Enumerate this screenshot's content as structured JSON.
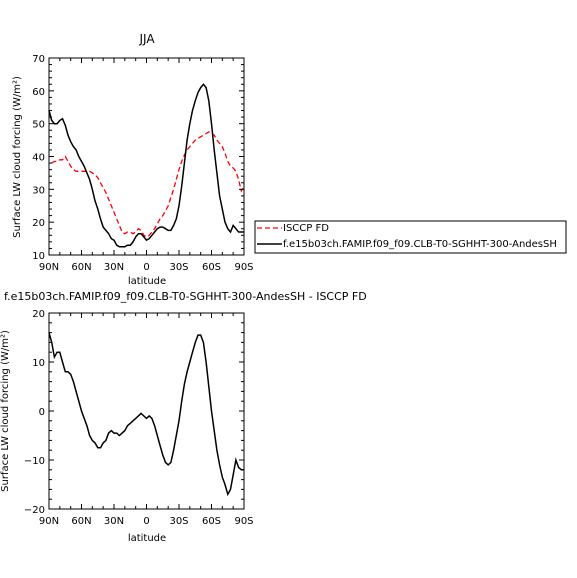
{
  "chart_data": [
    {
      "type": "line",
      "title": "JJA",
      "xlabel": "latitude",
      "ylabel": "Surface LW cloud forcing (W/m²)",
      "xlim": [
        -90,
        90
      ],
      "ylim": [
        10,
        70
      ],
      "x_tick_values": [
        -90,
        -60,
        -30,
        0,
        30,
        60,
        90
      ],
      "x_tick_labels": [
        "90N",
        "60N",
        "30N",
        "0",
        "30S",
        "60S",
        "90S"
      ],
      "y_tick_values": [
        10,
        20,
        30,
        40,
        50,
        60,
        70
      ],
      "y_tick_labels": [
        "10",
        "20",
        "30",
        "40",
        "50",
        "60",
        "70"
      ],
      "grid": false,
      "legend_position": "right",
      "series": [
        {
          "name": "ISCCP FD",
          "color": "#ff0000",
          "dash": "dashed",
          "x": [
            -87.5,
            -85,
            -82.5,
            -80,
            -77.5,
            -75,
            -72.5,
            -70,
            -67.5,
            -65,
            -62.5,
            -60,
            -57.5,
            -55,
            -52.5,
            -50,
            -47.5,
            -45,
            -42.5,
            -40,
            -37.5,
            -35,
            -32.5,
            -30,
            -27.5,
            -25,
            -22.5,
            -20,
            -17.5,
            -15,
            -12.5,
            -10,
            -7.5,
            -5,
            -2.5,
            0,
            2.5,
            5,
            7.5,
            10,
            12.5,
            15,
            17.5,
            20,
            22.5,
            25,
            27.5,
            30,
            32.5,
            35,
            37.5,
            40,
            42.5,
            45,
            47.5,
            50,
            52.5,
            55,
            57.5,
            60,
            62.5,
            65,
            67.5,
            70,
            72.5,
            75,
            77.5,
            80,
            82.5,
            85,
            87.5,
            90
          ],
          "y": [
            38,
            38.5,
            38.5,
            39,
            39,
            40,
            38.5,
            37,
            36,
            35.5,
            35.5,
            35.5,
            35.5,
            35.5,
            35.5,
            35,
            34.5,
            33.5,
            32,
            30.5,
            29,
            27,
            25,
            23,
            21,
            19,
            17,
            16.5,
            17,
            17,
            16.5,
            17,
            18,
            17.5,
            16,
            15.5,
            16,
            17,
            18,
            19.5,
            21,
            22,
            23.5,
            25,
            27.5,
            30,
            33,
            36,
            38.5,
            40.5,
            42,
            43,
            44,
            45,
            45.5,
            46,
            46.5,
            47,
            47.5,
            47,
            46.5,
            45,
            44,
            43,
            41,
            38.5,
            37,
            36.5,
            35.5,
            33,
            29.5,
            31
          ]
        },
        {
          "name": "f.e15b03ch.FAMIP.f09_f09.CLB-T0-SGHHT-300-AndesSH",
          "color": "#000000",
          "dash": "solid",
          "x": [
            -90,
            -87.5,
            -85,
            -82.5,
            -80,
            -77.5,
            -75,
            -72.5,
            -70,
            -67.5,
            -65,
            -62.5,
            -60,
            -57.5,
            -55,
            -52.5,
            -50,
            -47.5,
            -45,
            -42.5,
            -40,
            -37.5,
            -35,
            -32.5,
            -30,
            -27.5,
            -25,
            -22.5,
            -20,
            -17.5,
            -15,
            -12.5,
            -10,
            -7.5,
            -5,
            -2.5,
            0,
            2.5,
            5,
            7.5,
            10,
            12.5,
            15,
            17.5,
            20,
            22.5,
            25,
            27.5,
            30,
            32.5,
            35,
            37.5,
            40,
            42.5,
            45,
            47.5,
            50,
            52.5,
            55,
            57.5,
            60,
            62.5,
            65,
            67.5,
            70,
            72.5,
            75,
            77.5,
            80,
            82.5,
            85,
            87.5,
            90
          ],
          "y": [
            54,
            51,
            50,
            50,
            51,
            51.5,
            49.5,
            46.5,
            44.5,
            43,
            42,
            40,
            38.5,
            37,
            35,
            33,
            30,
            26.5,
            24,
            21,
            18.5,
            17.5,
            16.5,
            15,
            14.5,
            13,
            12.5,
            12.5,
            12.5,
            13,
            13,
            14,
            15.5,
            16.5,
            16.5,
            15.5,
            14.5,
            15,
            16,
            17,
            18,
            18.5,
            18.5,
            18,
            17.5,
            17.5,
            19,
            21,
            25,
            31,
            38,
            45,
            50,
            54,
            57,
            59.5,
            61,
            62,
            61,
            57,
            50,
            42,
            35,
            28,
            24,
            20,
            18,
            17,
            19,
            18,
            17,
            17,
            17
          ]
        }
      ]
    },
    {
      "type": "line",
      "title": "f.e15b03ch.FAMIP.f09_f09.CLB-T0-SGHHT-300-AndesSH - ISCCP FD",
      "xlabel": "latitude",
      "ylabel": "Surface LW cloud forcing (W/m²)",
      "xlim": [
        -90,
        90
      ],
      "ylim": [
        -20,
        20
      ],
      "x_tick_values": [
        -90,
        -60,
        -30,
        0,
        30,
        60,
        90
      ],
      "x_tick_labels": [
        "90N",
        "60N",
        "30N",
        "0",
        "30S",
        "60S",
        "90S"
      ],
      "y_tick_values": [
        -20,
        -10,
        0,
        10,
        20
      ],
      "y_tick_labels": [
        "−20",
        "−10",
        "0",
        "10",
        "20"
      ],
      "grid": false,
      "series": [
        {
          "color": "#000000",
          "dash": "solid",
          "x": [
            -90,
            -87.5,
            -85,
            -82.5,
            -80,
            -77.5,
            -75,
            -72.5,
            -70,
            -67.5,
            -65,
            -62.5,
            -60,
            -57.5,
            -55,
            -52.5,
            -50,
            -47.5,
            -45,
            -42.5,
            -40,
            -37.5,
            -35,
            -32.5,
            -30,
            -27.5,
            -25,
            -22.5,
            -20,
            -17.5,
            -15,
            -12.5,
            -10,
            -7.5,
            -5,
            -2.5,
            0,
            2.5,
            5,
            7.5,
            10,
            12.5,
            15,
            17.5,
            20,
            22.5,
            25,
            27.5,
            30,
            32.5,
            35,
            37.5,
            40,
            42.5,
            45,
            47.5,
            50,
            52.5,
            55,
            57.5,
            60,
            62.5,
            65,
            67.5,
            70,
            72.5,
            75,
            77.5,
            80,
            82.5,
            85,
            87.5,
            90
          ],
          "y": [
            16,
            14,
            11,
            12,
            12,
            10,
            8,
            8,
            7.5,
            6,
            4,
            2,
            0,
            -1.5,
            -3,
            -5,
            -6,
            -6.5,
            -7.5,
            -7.5,
            -6.5,
            -6,
            -4.5,
            -4,
            -4.5,
            -4.5,
            -5,
            -4.5,
            -4,
            -3,
            -2.5,
            -2,
            -1.5,
            -1,
            -0.5,
            -1,
            -1.5,
            -1,
            -1.5,
            -3,
            -5,
            -7,
            -9,
            -10.5,
            -11,
            -10.5,
            -8,
            -5,
            -2,
            2,
            5.5,
            8,
            10,
            12,
            14,
            15.5,
            15.5,
            14,
            10,
            5,
            0,
            -4,
            -8,
            -11,
            -13.5,
            -15,
            -17,
            -16,
            -13,
            -10,
            -11.5,
            -12,
            -12
          ]
        }
      ]
    }
  ]
}
